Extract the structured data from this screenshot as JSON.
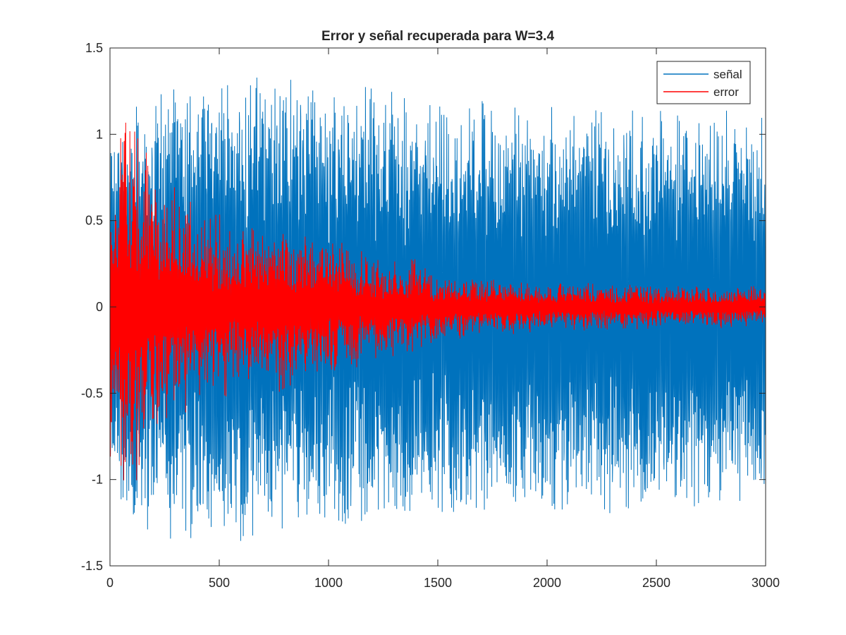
{
  "chart_data": {
    "type": "line",
    "title": "Error y señal recuperada para W=3.4",
    "xlabel": "",
    "ylabel": "",
    "xlim": [
      0,
      3000
    ],
    "ylim": [
      -1.5,
      1.5
    ],
    "xticks": [
      0,
      500,
      1000,
      1500,
      2000,
      2500,
      3000
    ],
    "xtick_labels": [
      "0",
      "500",
      "1000",
      "1500",
      "2000",
      "2500",
      "3000"
    ],
    "yticks": [
      -1.5,
      -1,
      -0.5,
      0,
      0.5,
      1,
      1.5
    ],
    "ytick_labels": [
      "-1.5",
      "-1",
      "-0.5",
      "0",
      "0.5",
      "1",
      "1.5"
    ],
    "grid": false,
    "legend_position": "top-right",
    "n_points": 3000,
    "series": [
      {
        "name": "señal",
        "color": "#0072BD",
        "envelope": {
          "x": [
            0,
            100,
            200,
            300,
            400,
            500,
            600,
            700,
            800,
            1000,
            1200,
            1500,
            1800,
            2000,
            2200,
            2500,
            2800,
            3000
          ],
          "peak_upper": [
            0.95,
            1.2,
            1.32,
            1.3,
            1.35,
            1.38,
            1.4,
            1.45,
            1.35,
            1.3,
            1.28,
            1.22,
            1.2,
            1.18,
            1.15,
            1.15,
            1.15,
            1.12
          ],
          "peak_lower": [
            -1.05,
            -1.25,
            -1.32,
            -1.35,
            -1.4,
            -1.38,
            -1.38,
            -1.3,
            -1.3,
            -1.28,
            -1.25,
            -1.22,
            -1.2,
            -1.2,
            -1.22,
            -1.18,
            -1.15,
            -1.12
          ]
        }
      },
      {
        "name": "error",
        "color": "#FF0000",
        "envelope": {
          "x": [
            0,
            50,
            100,
            200,
            300,
            400,
            500,
            600,
            700,
            800,
            900,
            1000,
            1200,
            1400,
            1500,
            1700,
            2000,
            2500,
            3000
          ],
          "amplitude": [
            1.0,
            1.15,
            1.2,
            0.85,
            0.7,
            0.62,
            0.55,
            0.5,
            0.5,
            0.5,
            0.45,
            0.4,
            0.33,
            0.28,
            0.2,
            0.18,
            0.15,
            0.13,
            0.12
          ]
        }
      }
    ]
  }
}
